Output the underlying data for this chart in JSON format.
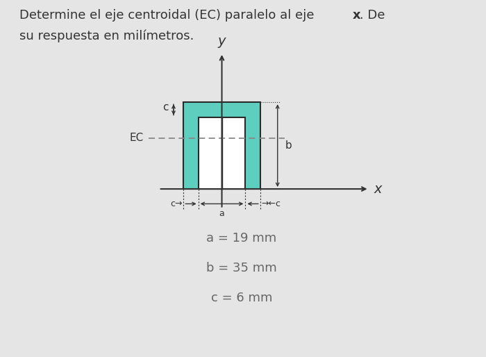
{
  "a": 19,
  "b": 35,
  "c": 6,
  "a_label": "a = 19 mm",
  "b_label": "b = 35 mm",
  "c_label": "c = 6 mm",
  "bg_color": "#e5e5e5",
  "shape_fill": "#5ecfbe",
  "shape_edge": "#2a2a2a",
  "inner_fill": "#ffffff",
  "text_color": "#666666",
  "axis_color": "#333333",
  "title_color": "#333333"
}
